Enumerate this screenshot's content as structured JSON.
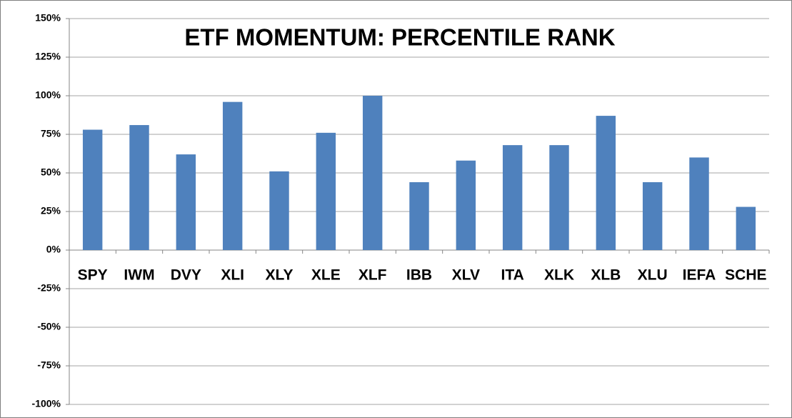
{
  "chart_data": {
    "type": "bar",
    "title": "ETF MOMENTUM: PERCENTILE RANK",
    "categories": [
      "SPY",
      "IWM",
      "DVY",
      "XLI",
      "XLY",
      "XLE",
      "XLF",
      "IBB",
      "XLV",
      "ITA",
      "XLK",
      "XLB",
      "XLU",
      "IEFA",
      "SCHE"
    ],
    "values": [
      78,
      81,
      62,
      96,
      51,
      76,
      100,
      44,
      58,
      68,
      68,
      87,
      44,
      60,
      28
    ],
    "color": "#4f81bd",
    "ylim": [
      -100,
      150
    ],
    "yticks": [
      {
        "value": -100,
        "label": "-100%"
      },
      {
        "value": -75,
        "label": "-75%"
      },
      {
        "value": -50,
        "label": "-50%"
      },
      {
        "value": -25,
        "label": "-25%"
      },
      {
        "value": 0,
        "label": "0%"
      },
      {
        "value": 25,
        "label": "25%"
      },
      {
        "value": 50,
        "label": "50%"
      },
      {
        "value": 75,
        "label": "75%"
      },
      {
        "value": 100,
        "label": "100%"
      },
      {
        "value": 125,
        "label": "125%"
      },
      {
        "value": 150,
        "label": "150%"
      }
    ],
    "grid": true
  }
}
